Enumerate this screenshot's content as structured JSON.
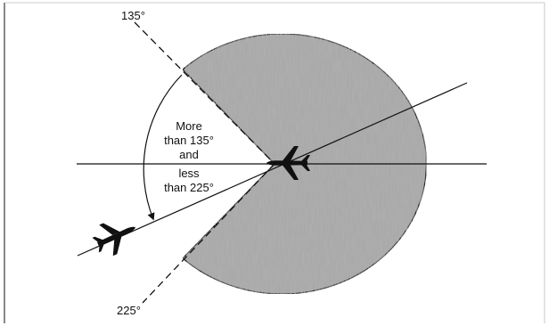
{
  "diagram": {
    "label_135": "135°",
    "label_225": "225°",
    "zone_label": {
      "line1": "More",
      "line2": "than 135°",
      "line3": "and",
      "line4": "less",
      "line5": "than 225°"
    }
  },
  "colors": {
    "sector_fill": "#a9a9a9",
    "stroke": "#111111",
    "background": "#ffffff"
  },
  "icons": {
    "overtaken_aircraft": "airplane-icon",
    "overtaking_aircraft": "airplane-icon"
  }
}
